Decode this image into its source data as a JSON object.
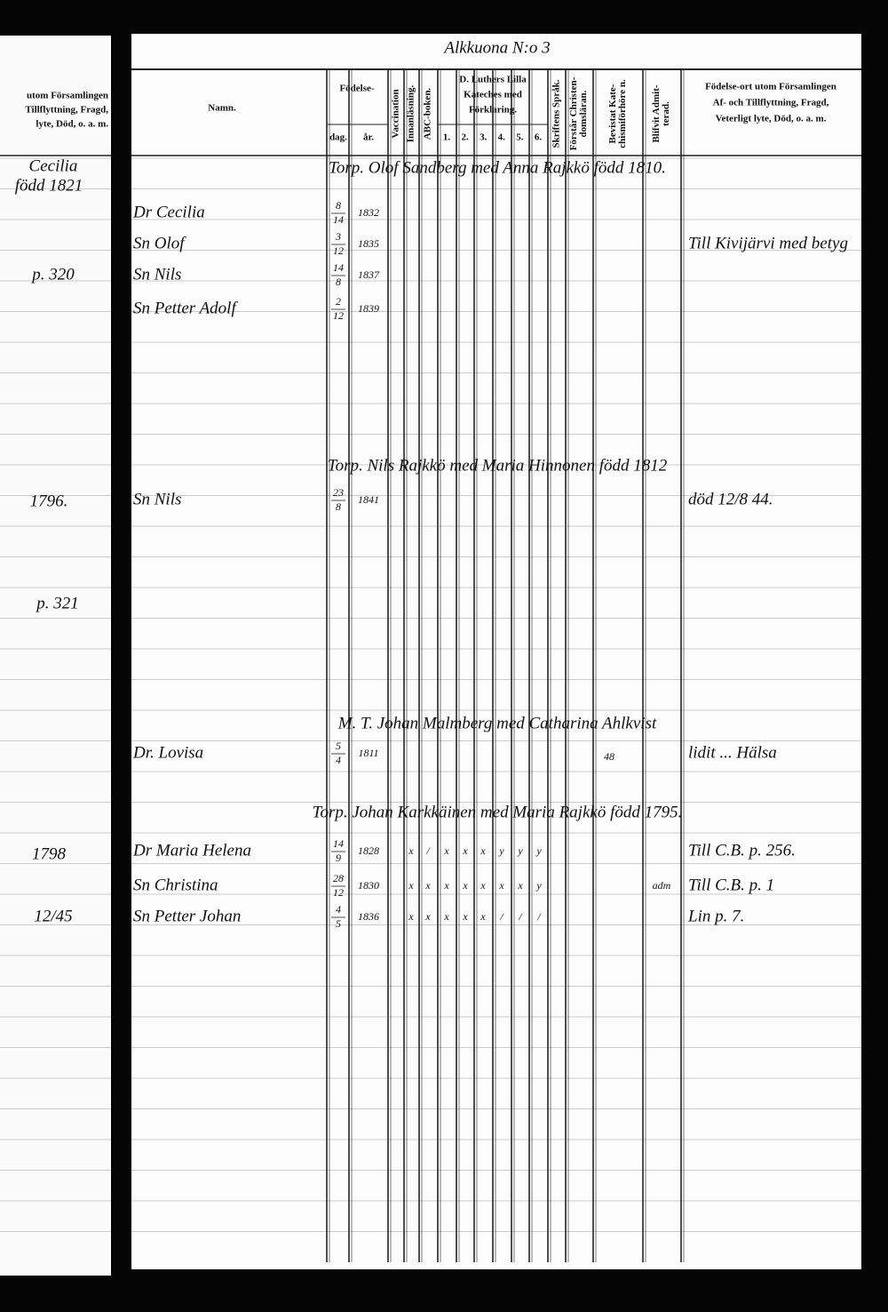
{
  "left_page": {
    "header": [
      "utom Församlingen",
      "Tillflyttning, Fragd,",
      "lyte, Död, o. a. m."
    ],
    "notes": [
      "Cecilia",
      "född 1821",
      "p. 320",
      "1796.",
      "p. 321",
      "1798",
      "12/45"
    ]
  },
  "header": {
    "title": "Alkkuona N:o 3"
  },
  "columns": {
    "name": "Namn.",
    "birth": "Födelse-",
    "day": "dag.",
    "year": "år.",
    "vaccination": [
      "Vaccination"
    ],
    "reading": [
      "Innanläsning."
    ],
    "abc": [
      "ABC-boken."
    ],
    "catechism": [
      "D. Luthers Lilla",
      "Kateches med",
      "Förklaring."
    ],
    "catechism_parts": [
      "1.",
      "2.",
      "3.",
      "4.",
      "5.",
      "6."
    ],
    "scripture": [
      "Skriftens Språk."
    ],
    "understands": [
      "Förstår Christen-",
      "domsläran."
    ],
    "attended": [
      "Bevistat Kate-",
      "chismiförhöre n."
    ],
    "admitted": [
      "Blifvit Admit-",
      "terad."
    ],
    "remarks": [
      "Födelse-ort utom Församlingen",
      "Af- och Tillflyttning, Fragd,",
      "Veterligt lyte, Död, o. a. m."
    ]
  },
  "households": [
    {
      "heading": "Torp. Olof Sandberg med Anna Rajkkö född 1810.",
      "members": [
        {
          "name": "Dr Cecilia",
          "date": [
            "8",
            "14"
          ],
          "year": "1832"
        },
        {
          "name": "Sn Olof",
          "date": [
            "3",
            "12"
          ],
          "year": "1835",
          "note": "Till Kivijärvi med betyg"
        },
        {
          "name": "Sn Nils",
          "date": [
            "14",
            "8"
          ],
          "year": "1837"
        },
        {
          "name": "Sn Petter Adolf",
          "date": [
            "2",
            "12"
          ],
          "year": "1839"
        }
      ]
    },
    {
      "heading": "Torp. Nils Rajkkö med Maria Hinnonen född 1812",
      "members": [
        {
          "name": "Sn Nils",
          "date": [
            "23",
            "8"
          ],
          "year": "1841",
          "note": "död 12/8 44."
        }
      ]
    },
    {
      "heading": "M. T. Johan Malmberg med Catharina Ahlkvist",
      "members": [
        {
          "name": "Dr. Lovisa",
          "date": [
            "5",
            "4"
          ],
          "year": "1811",
          "attended": "48",
          "note": "lidit ... Hälsa"
        }
      ]
    },
    {
      "heading": "Torp. Johan Karkkäinen med Maria Rajkkö född 1795.",
      "members": [
        {
          "name": "Dr Maria Helena",
          "date": [
            "14",
            "9"
          ],
          "year": "1828",
          "catechism": [
            "x",
            "/",
            "x",
            "x",
            "x",
            "y",
            "y",
            "y"
          ],
          "note": "Till C.B. p. 256."
        },
        {
          "name": "Sn Christina",
          "date": [
            "28",
            "12"
          ],
          "year": "1830",
          "catechism": [
            "x",
            "x",
            "x",
            "x",
            "x",
            "x",
            "x",
            "y"
          ],
          "admitted": "adm",
          "note": "Till C.B. p. 1"
        },
        {
          "name": "Sn Petter Johan",
          "date": [
            "4",
            "5"
          ],
          "year": "1836",
          "catechism": [
            "x",
            "x",
            "x",
            "x",
            "x",
            "/",
            "/",
            "/"
          ],
          "note": "Lin p. 7."
        }
      ]
    }
  ]
}
